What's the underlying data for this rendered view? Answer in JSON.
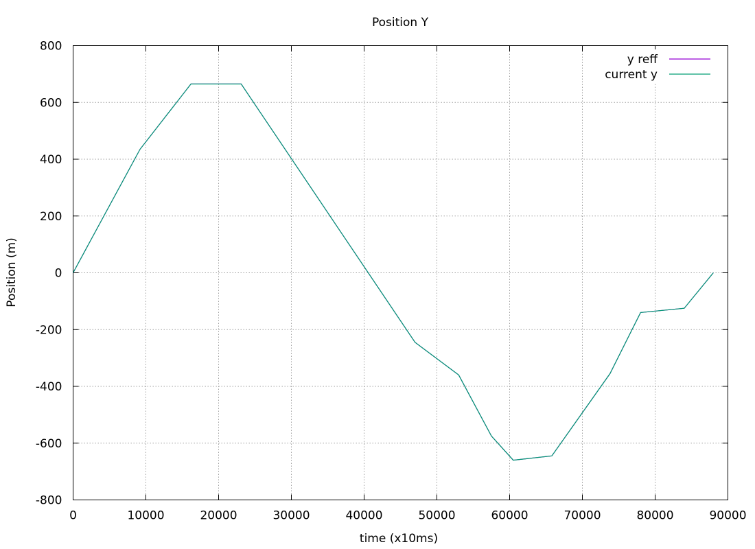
{
  "chart_data": {
    "type": "line",
    "title": "Position Y",
    "xlabel": "time (x10ms)",
    "ylabel": "Position (m)",
    "xlim": [
      0,
      90000
    ],
    "ylim": [
      -800,
      800
    ],
    "xticks": [
      0,
      10000,
      20000,
      30000,
      40000,
      50000,
      60000,
      70000,
      80000,
      90000
    ],
    "yticks": [
      -800,
      -600,
      -400,
      -200,
      0,
      200,
      400,
      600,
      800
    ],
    "xtick_labels": [
      "0",
      "10000",
      "20000",
      "30000",
      "40000",
      "50000",
      "60000",
      "70000",
      "80000",
      "90000"
    ],
    "ytick_labels": [
      "-800",
      "-600",
      "-400",
      "-200",
      "0",
      "200",
      "400",
      "600",
      "800"
    ],
    "grid": true,
    "legend_position": "top-right",
    "series": [
      {
        "name": "y reff",
        "color": "#9400d3",
        "x": [
          0,
          9200,
          16200,
          23100,
          47000,
          53000,
          57500,
          60500,
          65800,
          73800,
          78000,
          84000,
          88000
        ],
        "y": [
          0,
          435,
          665,
          665,
          -245,
          -360,
          -575,
          -660,
          -645,
          -355,
          -140,
          -125,
          0
        ]
      },
      {
        "name": "current y",
        "color": "#009e73",
        "x": [
          0,
          9200,
          16200,
          23100,
          47000,
          53000,
          57500,
          60500,
          65800,
          73800,
          78000,
          84000,
          88000
        ],
        "y": [
          0,
          435,
          665,
          665,
          -245,
          -360,
          -575,
          -660,
          -645,
          -355,
          -140,
          -125,
          0
        ]
      }
    ]
  }
}
